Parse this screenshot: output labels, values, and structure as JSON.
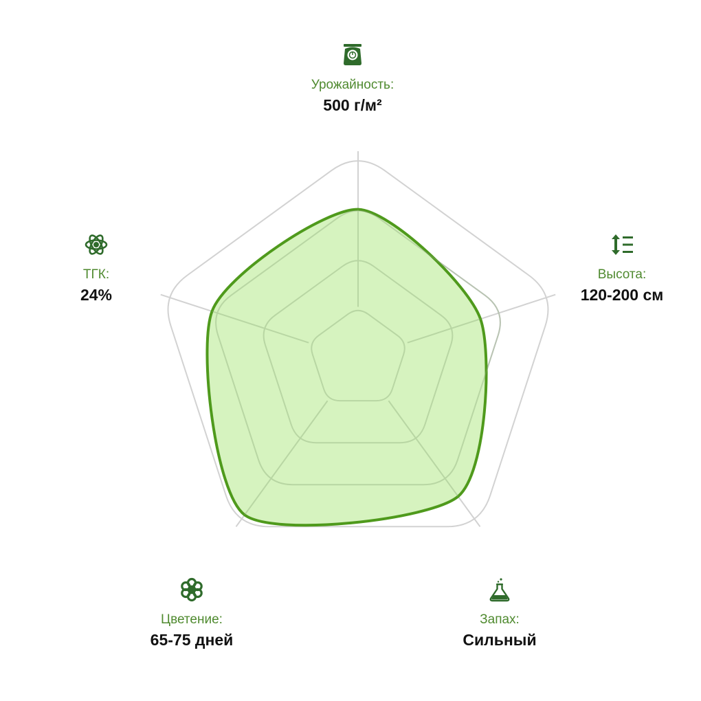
{
  "chart_data": {
    "type": "radar",
    "title": "",
    "axes": [
      {
        "key": "yield",
        "label": "Урожайность:",
        "value_text": "500 г/м²",
        "icon": "scale-icon"
      },
      {
        "key": "height",
        "label": "Высота:",
        "value_text": "120-200 см",
        "icon": "height-arrows-icon"
      },
      {
        "key": "smell",
        "label": "Запах:",
        "value_text": "Сильный",
        "icon": "flask-icon"
      },
      {
        "key": "flowering",
        "label": "Цветение:",
        "value_text": "65-75 дней",
        "icon": "flower-icon"
      },
      {
        "key": "thc",
        "label": "ТГК:",
        "value_text": "24%",
        "icon": "atom-icon"
      }
    ],
    "series": [
      {
        "values": [
          0.72,
          0.62,
          0.82,
          0.93,
          0.74
        ]
      }
    ],
    "scale_levels": [
      0.25,
      0.5,
      0.75,
      1.0
    ],
    "colors": {
      "grid": "#d2d2d2",
      "fill": "#d2f2b8",
      "stroke": "#4f9a1c",
      "label": "#4f8a2f",
      "icon": "#2f6b2b",
      "value": "#111111"
    }
  }
}
